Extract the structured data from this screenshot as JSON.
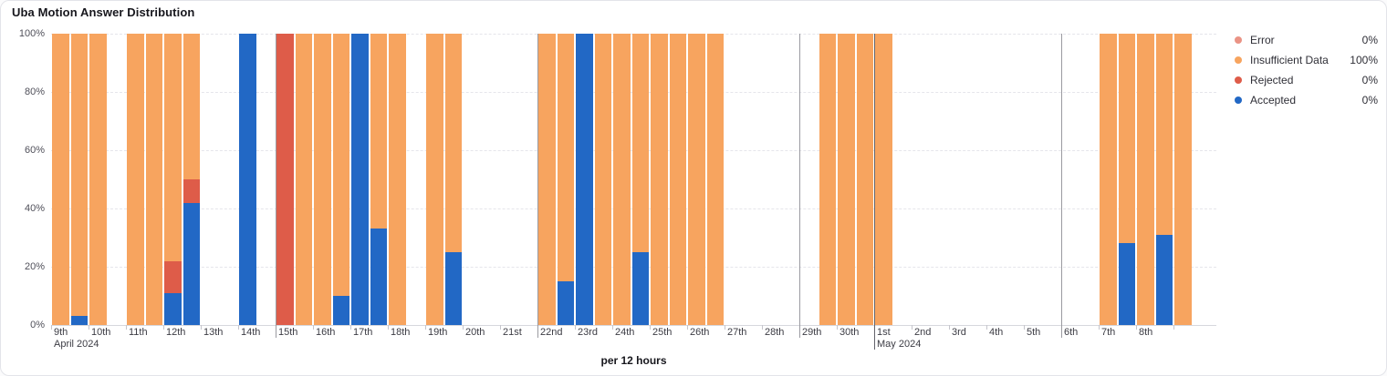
{
  "title": "Uba Motion Answer Distribution",
  "legend": {
    "position": "right",
    "items": [
      {
        "label": "Error",
        "value": "0%",
        "color": "#EA9385"
      },
      {
        "label": "Insufficient Data",
        "value": "100%",
        "color": "#F7A45F"
      },
      {
        "label": "Rejected",
        "value": "0%",
        "color": "#DE5C49"
      },
      {
        "label": "Accepted",
        "value": "0%",
        "color": "#2268C5"
      }
    ]
  },
  "chart_data": {
    "type": "bar",
    "stacked": true,
    "unit": "percent",
    "title": "Uba Motion Answer Distribution",
    "xlabel": "per 12 hours",
    "ylabel": "",
    "ylim": [
      0,
      100
    ],
    "grid": "dashed-horizontal",
    "legend_position": "right",
    "y_ticks": [
      "0%",
      "20%",
      "40%",
      "60%",
      "80%",
      "100%"
    ],
    "x_day_labels": [
      "9th",
      "10th",
      "11th",
      "12th",
      "13th",
      "14th",
      "15th",
      "16th",
      "17th",
      "18th",
      "19th",
      "20th",
      "21st",
      "22nd",
      "23rd",
      "24th",
      "25th",
      "26th",
      "27th",
      "28th",
      "29th",
      "30th",
      "1st",
      "2nd",
      "3rd",
      "4th",
      "5th",
      "6th",
      "7th",
      "8th"
    ],
    "month_labels": [
      {
        "day_index": 0,
        "label": "April 2024"
      },
      {
        "day_index": 22,
        "label": "May 2024"
      }
    ],
    "monday_day_indices": [
      6,
      13,
      20,
      27
    ],
    "month_boundary_day_index": 22,
    "series_colors": {
      "accepted": "#2268C5",
      "rejected": "#DE5C49",
      "insufficient": "#F7A45F",
      "error": "#EA9385"
    },
    "series_names": {
      "accepted": "Accepted",
      "rejected": "Rejected",
      "insufficient": "Insufficient Data",
      "error": "Error"
    },
    "bars": [
      {
        "date": "Apr 9 AM",
        "d": 0,
        "h": 0,
        "insufficient": 100
      },
      {
        "date": "Apr 9 PM",
        "d": 0,
        "h": 1,
        "accepted": 3,
        "insufficient": 97
      },
      {
        "date": "Apr 10 AM",
        "d": 1,
        "h": 0,
        "insufficient": 100
      },
      {
        "date": "Apr 11 AM",
        "d": 2,
        "h": 0,
        "insufficient": 100
      },
      {
        "date": "Apr 11 PM",
        "d": 2,
        "h": 1,
        "insufficient": 100
      },
      {
        "date": "Apr 12 AM",
        "d": 3,
        "h": 0,
        "accepted": 11,
        "rejected": 11,
        "insufficient": 78
      },
      {
        "date": "Apr 12 PM",
        "d": 3,
        "h": 1,
        "accepted": 42,
        "rejected": 8,
        "insufficient": 50
      },
      {
        "date": "Apr 14 AM",
        "d": 5,
        "h": 0,
        "accepted": 100
      },
      {
        "date": "Apr 15 AM",
        "d": 6,
        "h": 0,
        "rejected": 100
      },
      {
        "date": "Apr 15 PM",
        "d": 6,
        "h": 1,
        "insufficient": 100
      },
      {
        "date": "Apr 16 AM",
        "d": 7,
        "h": 0,
        "insufficient": 100
      },
      {
        "date": "Apr 16 PM",
        "d": 7,
        "h": 1,
        "accepted": 10,
        "insufficient": 90
      },
      {
        "date": "Apr 17 AM",
        "d": 8,
        "h": 0,
        "accepted": 100
      },
      {
        "date": "Apr 17 PM",
        "d": 8,
        "h": 1,
        "accepted": 33,
        "insufficient": 67
      },
      {
        "date": "Apr 18 AM",
        "d": 9,
        "h": 0,
        "insufficient": 100
      },
      {
        "date": "Apr 19 AM",
        "d": 10,
        "h": 0,
        "insufficient": 100
      },
      {
        "date": "Apr 19 PM",
        "d": 10,
        "h": 1,
        "accepted": 25,
        "insufficient": 75
      },
      {
        "date": "Apr 22 AM",
        "d": 13,
        "h": 0,
        "insufficient": 100
      },
      {
        "date": "Apr 22 PM",
        "d": 13,
        "h": 1,
        "accepted": 15,
        "insufficient": 85
      },
      {
        "date": "Apr 23 AM",
        "d": 14,
        "h": 0,
        "accepted": 100
      },
      {
        "date": "Apr 23 PM",
        "d": 14,
        "h": 1,
        "insufficient": 100
      },
      {
        "date": "Apr 24 AM",
        "d": 15,
        "h": 0,
        "insufficient": 100
      },
      {
        "date": "Apr 24 PM",
        "d": 15,
        "h": 1,
        "accepted": 25,
        "insufficient": 75
      },
      {
        "date": "Apr 25 AM",
        "d": 16,
        "h": 0,
        "insufficient": 100
      },
      {
        "date": "Apr 25 PM",
        "d": 16,
        "h": 1,
        "insufficient": 100
      },
      {
        "date": "Apr 26 AM",
        "d": 17,
        "h": 0,
        "insufficient": 100
      },
      {
        "date": "Apr 26 PM",
        "d": 17,
        "h": 1,
        "insufficient": 100
      },
      {
        "date": "Apr 29 PM",
        "d": 20,
        "h": 1,
        "insufficient": 100
      },
      {
        "date": "Apr 30 AM",
        "d": 21,
        "h": 0,
        "insufficient": 100
      },
      {
        "date": "Apr 30 PM",
        "d": 21,
        "h": 1,
        "insufficient": 100
      },
      {
        "date": "May 1 AM",
        "d": 22,
        "h": 0,
        "insufficient": 100
      },
      {
        "date": "May 7 AM",
        "d": 28,
        "h": 0,
        "insufficient": 100
      },
      {
        "date": "May 7 PM",
        "d": 28,
        "h": 1,
        "accepted": 28,
        "insufficient": 72
      },
      {
        "date": "May 8 AM",
        "d": 29,
        "h": 0,
        "insufficient": 100
      },
      {
        "date": "May 8 PM",
        "d": 29,
        "h": 1,
        "accepted": 31,
        "insufficient": 69
      },
      {
        "date": "May 9 AM",
        "d": 30,
        "h": 0,
        "insufficient": 100
      }
    ]
  }
}
